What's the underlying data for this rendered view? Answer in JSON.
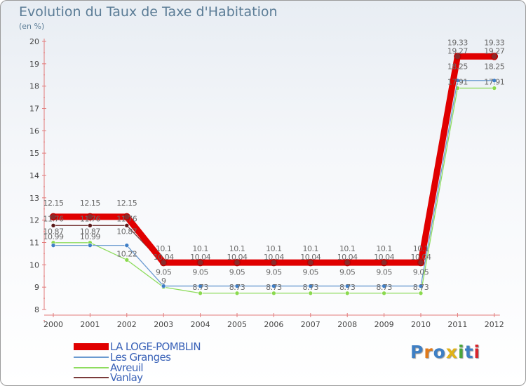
{
  "title": "Evolution du Taux de Taxe d'Habitation",
  "unit": "(en %)",
  "chart_data": {
    "type": "line",
    "x": [
      "2000",
      "2001",
      "2002",
      "2003",
      "2004",
      "2005",
      "2006",
      "2007",
      "2008",
      "2009",
      "2010",
      "2011",
      "2012"
    ],
    "ylim": [
      8,
      20
    ],
    "yticks": [
      8,
      9,
      10,
      11,
      12,
      13,
      14,
      15,
      16,
      17,
      18,
      19,
      20
    ],
    "grid": false,
    "series": [
      {
        "name": "LA LOGE-POMBLIN",
        "color": "#e00000",
        "marker": "#8b2a2a",
        "values": [
          12.15,
          12.15,
          12.15,
          10.1,
          10.1,
          10.1,
          10.1,
          10.1,
          10.1,
          10.1,
          10.1,
          19.33,
          19.33
        ],
        "labels": [
          "12.15",
          "12.15",
          "12.15",
          "10.1",
          "10.1",
          "10.1",
          "10.1",
          "10.1",
          "10.1",
          "10.1",
          "10.1",
          "19.33",
          "19.33"
        ]
      },
      {
        "name": "Les Granges",
        "color": "#6a9ad0",
        "marker": "#3f7ec6",
        "values": [
          10.87,
          10.87,
          10.87,
          9.05,
          9.05,
          9.05,
          9.05,
          9.05,
          9.05,
          9.05,
          9.05,
          18.25,
          18.25
        ],
        "labels": [
          "10.87",
          "10.87",
          "10.87",
          "9.05",
          "9.05",
          "9.05",
          "9.05",
          "9.05",
          "9.05",
          "9.05",
          "9.05",
          "18.25",
          "18.25"
        ]
      },
      {
        "name": "Avreuil",
        "color": "#8edc5e",
        "marker": "#8ad94e",
        "values": [
          10.99,
          10.99,
          10.22,
          9.0,
          8.73,
          8.73,
          8.73,
          8.73,
          8.73,
          8.73,
          8.73,
          17.91,
          17.91
        ],
        "labels": [
          "10.99",
          "10.99",
          "10.22",
          "9",
          "8.73",
          "8.73",
          "8.73",
          "8.73",
          "8.73",
          "8.73",
          "8.73",
          "17.91",
          "17.91"
        ]
      },
      {
        "name": "Vanlay",
        "color": "#7a3b3b",
        "marker": "#5a1a1a",
        "values": [
          11.76,
          11.76,
          11.76,
          10.04,
          10.04,
          10.04,
          10.04,
          10.04,
          10.04,
          10.04,
          10.04,
          19.27,
          19.27
        ],
        "labels": [
          "11.76",
          "11.76",
          "11.76",
          "10.04",
          "10.04",
          "10.04",
          "10.04",
          "10.04",
          "10.04",
          "10.04",
          "10.04",
          "19.27",
          "19.27"
        ]
      }
    ]
  },
  "legend": [
    {
      "label": "LA LOGE-POMBLIN",
      "color": "#e00000"
    },
    {
      "label": "Les Granges",
      "color": "#6a9ad0"
    },
    {
      "label": "Avreuil",
      "color": "#8edc5e"
    },
    {
      "label": "Vanlay",
      "color": "#7a3b3b"
    }
  ],
  "logo": {
    "letters": [
      "P",
      "r",
      "o",
      "x",
      "i",
      "t",
      "i"
    ],
    "colors": [
      "#3e7fc4",
      "#e07a1a",
      "#3e7fc4",
      "#e0b21a",
      "#4aa63a",
      "#3e7fc4",
      "#d8242a"
    ]
  }
}
